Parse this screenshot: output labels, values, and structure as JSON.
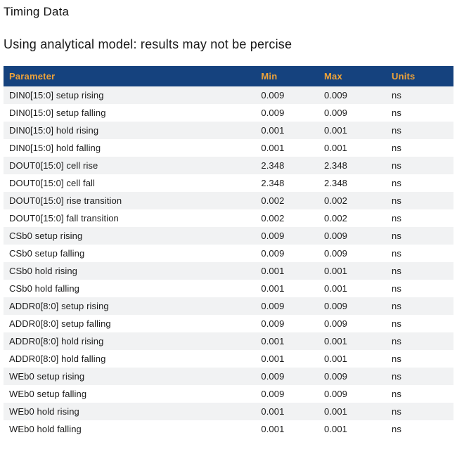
{
  "page": {
    "title": "Timing Data",
    "subtitle": "Using analytical model: results may not be percise"
  },
  "colors": {
    "header_bg": "#15427e",
    "header_text": "#efa339",
    "stripe_bg": "#f1f2f3",
    "body_text": "#1c1c1c"
  },
  "table": {
    "columns": [
      "Parameter",
      "Min",
      "Max",
      "Units"
    ],
    "rows": [
      {
        "parameter": "DIN0[15:0] setup rising",
        "min": "0.009",
        "max": "0.009",
        "units": "ns"
      },
      {
        "parameter": "DIN0[15:0] setup falling",
        "min": "0.009",
        "max": "0.009",
        "units": "ns"
      },
      {
        "parameter": "DIN0[15:0] hold rising",
        "min": "0.001",
        "max": "0.001",
        "units": "ns"
      },
      {
        "parameter": "DIN0[15:0] hold falling",
        "min": "0.001",
        "max": "0.001",
        "units": "ns"
      },
      {
        "parameter": "DOUT0[15:0] cell rise",
        "min": "2.348",
        "max": "2.348",
        "units": "ns"
      },
      {
        "parameter": "DOUT0[15:0] cell fall",
        "min": "2.348",
        "max": "2.348",
        "units": "ns"
      },
      {
        "parameter": "DOUT0[15:0] rise transition",
        "min": "0.002",
        "max": "0.002",
        "units": "ns"
      },
      {
        "parameter": "DOUT0[15:0] fall transition",
        "min": "0.002",
        "max": "0.002",
        "units": "ns"
      },
      {
        "parameter": "CSb0 setup rising",
        "min": "0.009",
        "max": "0.009",
        "units": "ns"
      },
      {
        "parameter": "CSb0 setup falling",
        "min": "0.009",
        "max": "0.009",
        "units": "ns"
      },
      {
        "parameter": "CSb0 hold rising",
        "min": "0.001",
        "max": "0.001",
        "units": "ns"
      },
      {
        "parameter": "CSb0 hold falling",
        "min": "0.001",
        "max": "0.001",
        "units": "ns"
      },
      {
        "parameter": "ADDR0[8:0] setup rising",
        "min": "0.009",
        "max": "0.009",
        "units": "ns"
      },
      {
        "parameter": "ADDR0[8:0] setup falling",
        "min": "0.009",
        "max": "0.009",
        "units": "ns"
      },
      {
        "parameter": "ADDR0[8:0] hold rising",
        "min": "0.001",
        "max": "0.001",
        "units": "ns"
      },
      {
        "parameter": "ADDR0[8:0] hold falling",
        "min": "0.001",
        "max": "0.001",
        "units": "ns"
      },
      {
        "parameter": "WEb0 setup rising",
        "min": "0.009",
        "max": "0.009",
        "units": "ns"
      },
      {
        "parameter": "WEb0 setup falling",
        "min": "0.009",
        "max": "0.009",
        "units": "ns"
      },
      {
        "parameter": "WEb0 hold rising",
        "min": "0.001",
        "max": "0.001",
        "units": "ns"
      },
      {
        "parameter": "WEb0 hold falling",
        "min": "0.001",
        "max": "0.001",
        "units": "ns"
      }
    ]
  }
}
